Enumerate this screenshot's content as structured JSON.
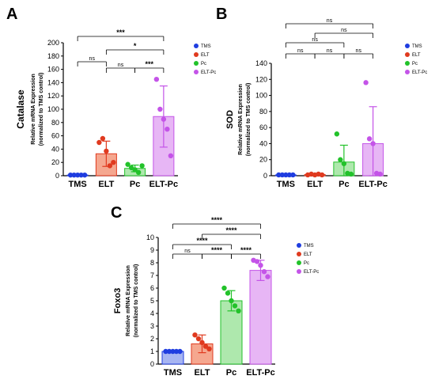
{
  "colors": {
    "TMS": "#1f3de0",
    "ELT": "#e03a1f",
    "Pc": "#22c22a",
    "ELT-Pc": "#c454e8",
    "TMS_fill": "#a7b5f2",
    "ELT_fill": "#f5a78f",
    "Pc_fill": "#aee8ad",
    "ELT-Pc_fill": "#e7b6f5"
  },
  "chart_data": [
    {
      "type": "bar",
      "panel": "A",
      "ylabel_top": "Catalase",
      "ylabel_mid": "Relative mRNA Expression",
      "ylabel_bot": "(normalized to TMS control)",
      "ylim": [
        0,
        200
      ],
      "yticks": [
        0,
        20,
        40,
        60,
        80,
        100,
        120,
        140,
        160,
        180,
        200
      ],
      "categories": [
        "TMS",
        "ELT",
        "Pc",
        "ELT-Pc"
      ],
      "values": [
        1,
        33,
        11,
        89
      ],
      "sd": [
        0,
        19,
        5,
        46
      ],
      "points": [
        [
          1,
          1,
          1,
          1,
          1
        ],
        [
          50,
          56,
          37,
          15,
          20
        ],
        [
          17,
          12,
          9,
          5,
          15
        ],
        [
          145,
          100,
          85,
          70,
          30
        ]
      ],
      "legend": [
        "TMS",
        "ELT",
        "Pc",
        "ELT-Pc"
      ],
      "legend_placement": "top-right",
      "comparisons": [
        {
          "a": 0,
          "b": 3,
          "label": "***"
        },
        {
          "a": 1,
          "b": 3,
          "label": "*"
        },
        {
          "a": 0,
          "b": 1,
          "label": "ns"
        },
        {
          "a": 1,
          "b": 2,
          "label": "ns"
        },
        {
          "a": 2,
          "b": 3,
          "label": "***"
        }
      ]
    },
    {
      "type": "bar",
      "panel": "B",
      "ylabel_top": "SOD",
      "ylabel_mid": "Relative mRNA Expression",
      "ylabel_bot": "(normalized to TMS control)",
      "ylim": [
        0,
        140
      ],
      "yticks": [
        0,
        20,
        40,
        60,
        80,
        100,
        120,
        140
      ],
      "categories": [
        "TMS",
        "ELT",
        "Pc",
        "ELT-Pc"
      ],
      "values": [
        1,
        1.5,
        17,
        40
      ],
      "sd": [
        0,
        0.5,
        21,
        46
      ],
      "points": [
        [
          1,
          1,
          1,
          1,
          1
        ],
        [
          1,
          2,
          1,
          2,
          1
        ],
        [
          52,
          20,
          15,
          3,
          2
        ],
        [
          116,
          46,
          40,
          3,
          2
        ]
      ],
      "legend": [
        "TMS",
        "ELT",
        "Pc",
        "ELT-Pc"
      ],
      "legend_placement": "top-right",
      "comparisons": [
        {
          "a": 0,
          "b": 3,
          "label": "ns"
        },
        {
          "a": 1,
          "b": 3,
          "label": "ns"
        },
        {
          "a": 0,
          "b": 2,
          "label": "ns"
        },
        {
          "a": 0,
          "b": 1,
          "label": "ns"
        },
        {
          "a": 1,
          "b": 2,
          "label": "ns"
        },
        {
          "a": 2,
          "b": 3,
          "label": "ns"
        }
      ]
    },
    {
      "type": "bar",
      "panel": "C",
      "ylabel_top": "Foxo3",
      "ylabel_mid": "Relative mRNA Expression",
      "ylabel_bot": "(normalized to TMS control)",
      "ylim": [
        0,
        10
      ],
      "yticks": [
        0,
        1,
        2,
        3,
        4,
        5,
        6,
        7,
        8,
        9,
        10
      ],
      "categories": [
        "TMS",
        "ELT",
        "Pc",
        "ELT-Pc"
      ],
      "values": [
        1,
        1.6,
        5,
        7.4
      ],
      "sd": [
        0,
        0.7,
        0.8,
        0.8
      ],
      "points": [
        [
          1,
          1,
          1,
          1,
          1
        ],
        [
          2.3,
          2.0,
          1.7,
          1.4,
          1.2
        ],
        [
          6.0,
          5.6,
          5.0,
          4.6,
          4.2
        ],
        [
          8.2,
          8.1,
          7.8,
          7.3,
          6.9
        ]
      ],
      "legend": [
        "TMS",
        "ELT",
        "Pc",
        "ELT-Pc"
      ],
      "legend_placement": "top-right",
      "comparisons": [
        {
          "a": 0,
          "b": 3,
          "label": "****"
        },
        {
          "a": 1,
          "b": 3,
          "label": "****"
        },
        {
          "a": 0,
          "b": 2,
          "label": "****"
        },
        {
          "a": 0,
          "b": 1,
          "label": "ns"
        },
        {
          "a": 1,
          "b": 2,
          "label": "****"
        },
        {
          "a": 2,
          "b": 3,
          "label": "****"
        }
      ]
    }
  ]
}
